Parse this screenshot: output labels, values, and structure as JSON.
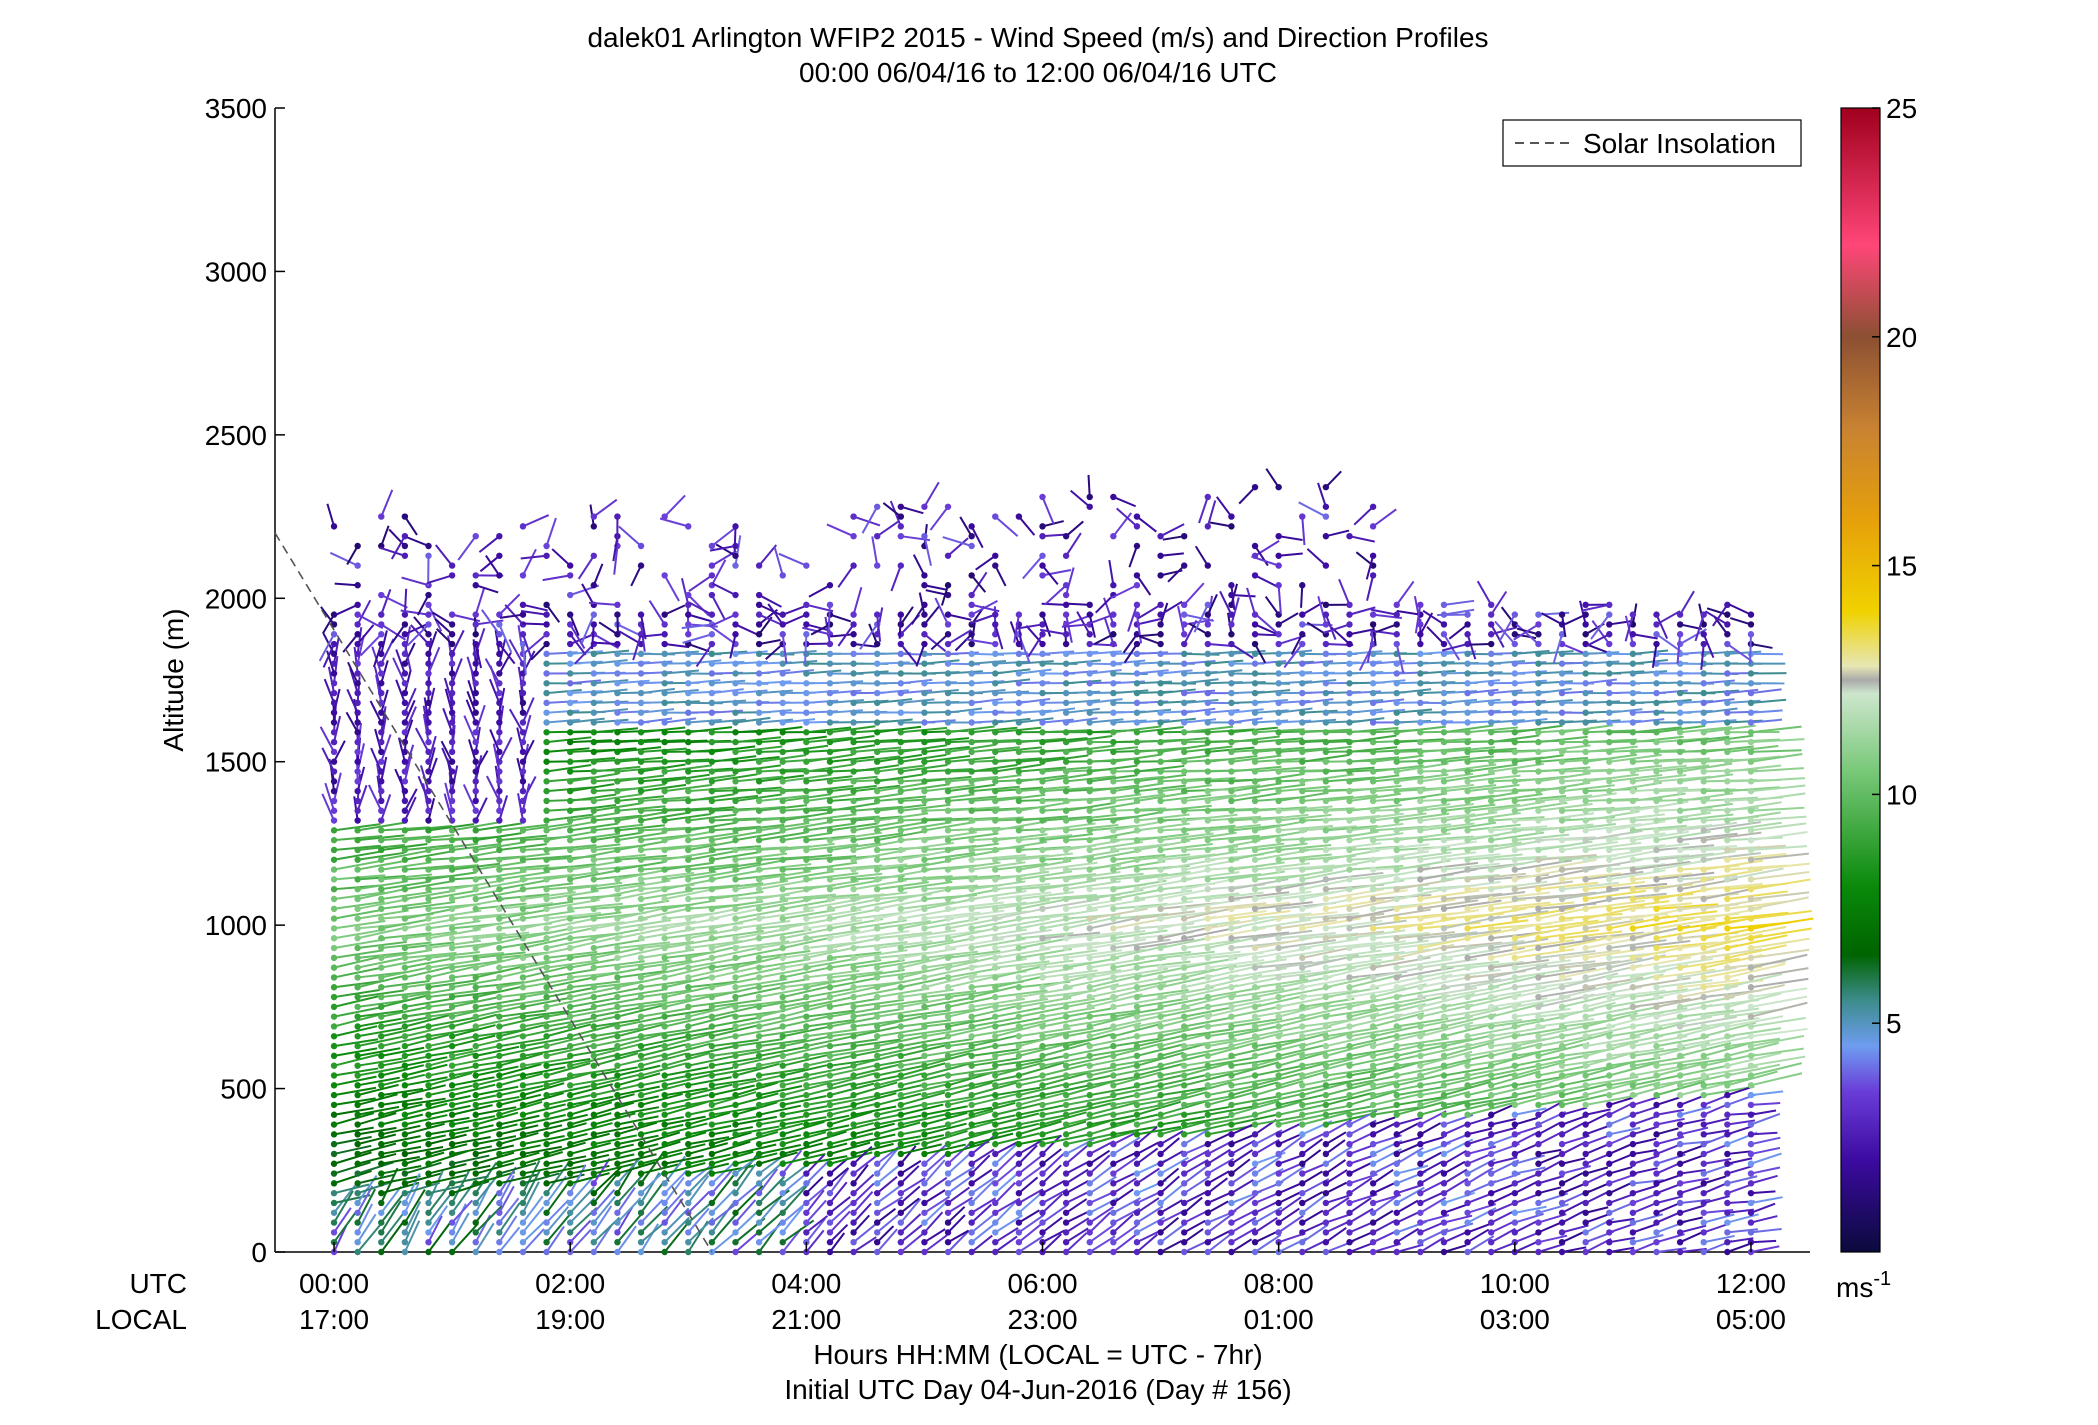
{
  "chart_data": {
    "type": "vector-field",
    "title": "dalek01 Arlington WFIP2 2015 - Wind Speed (m/s) and Direction Profiles",
    "subtitle": "00:00 06/04/16 to 12:00 06/04/16  UTC",
    "ylabel": "Altitude (m)",
    "xlabel": "Hours HH:MM  (LOCAL = UTC - 7hr)",
    "xlabel2": "Initial UTC Day 04-Jun-2016 (Day # 156)",
    "ylim": [
      0,
      3500
    ],
    "yticks": [
      "0",
      "500",
      "1000",
      "1500",
      "2000",
      "2500",
      "3000",
      "3500"
    ],
    "xlim_hours": [
      -0.5,
      12.5
    ],
    "xtick_rows": {
      "utc_label": "UTC",
      "local_label": "LOCAL",
      "utc": [
        "00:00",
        "02:00",
        "04:00",
        "06:00",
        "08:00",
        "10:00",
        "12:00"
      ],
      "local": [
        "17:00",
        "19:00",
        "21:00",
        "23:00",
        "01:00",
        "03:00",
        "05:00"
      ]
    },
    "legend": {
      "entries": [
        "Solar Insolation"
      ],
      "position": "top-right"
    },
    "solar_insolation_curve": {
      "x_hours": [
        -0.5,
        3.2
      ],
      "y_m": [
        2200,
        0
      ]
    },
    "colorbar": {
      "label": "ms",
      "label_superscript": "-1",
      "ticks": [
        "5",
        "10",
        "15",
        "20",
        "25"
      ],
      "range": [
        0,
        25
      ],
      "stops": [
        {
          "v": 0,
          "c": "#0a0a3c"
        },
        {
          "v": 2,
          "c": "#3c0aa0"
        },
        {
          "v": 3.5,
          "c": "#6a3cd8"
        },
        {
          "v": 4.5,
          "c": "#6e9cf0"
        },
        {
          "v": 5.5,
          "c": "#3c8c8c"
        },
        {
          "v": 6.5,
          "c": "#006400"
        },
        {
          "v": 8,
          "c": "#0a8a0a"
        },
        {
          "v": 10.5,
          "c": "#78c878"
        },
        {
          "v": 12.2,
          "c": "#cde6cd"
        },
        {
          "v": 12.5,
          "c": "#aaaaaa"
        },
        {
          "v": 12.8,
          "c": "#e6e6b4"
        },
        {
          "v": 14,
          "c": "#f0d200"
        },
        {
          "v": 16,
          "c": "#e6a00a"
        },
        {
          "v": 18,
          "c": "#c88232"
        },
        {
          "v": 20,
          "c": "#8c5032"
        },
        {
          "v": 22,
          "c": "#ff4678"
        },
        {
          "v": 25,
          "c": "#a0001e"
        }
      ]
    },
    "profiles": {
      "time_step_hours": 0.2,
      "altitude_step_m": 30,
      "max_altitude_m": 2300,
      "description": "wind barbs at each time/altitude, speed mapped to colorbar"
    }
  }
}
